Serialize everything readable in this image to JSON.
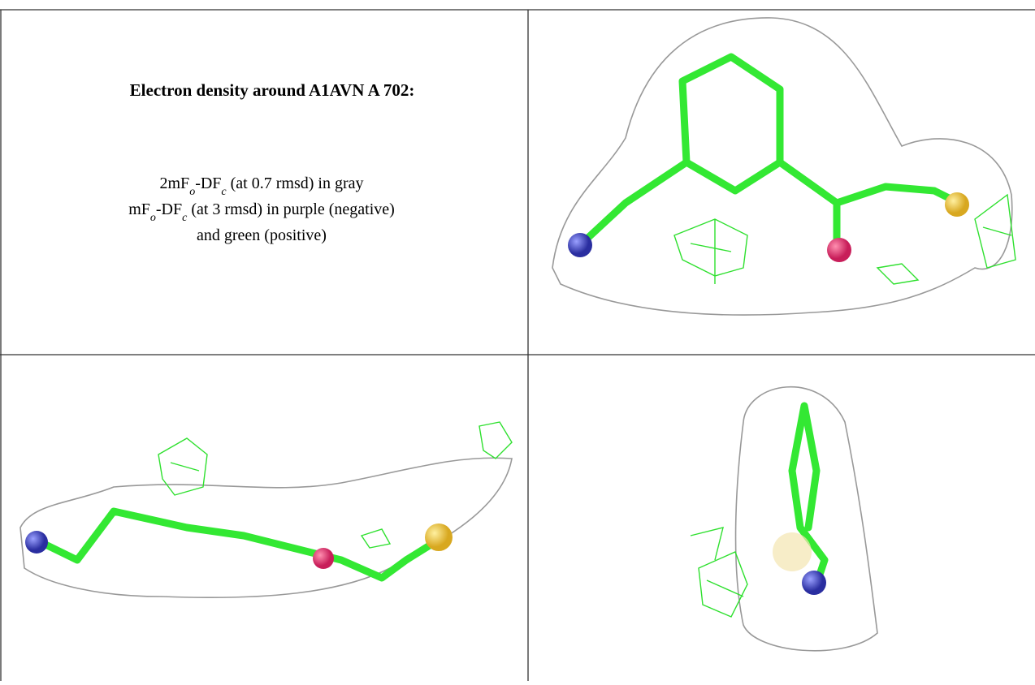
{
  "caption": {
    "title": "Electron density around A1AVN A 702:",
    "lines": [
      [
        "2mF",
        "o",
        "-DF",
        "c",
        " (at 0.7 rmsd) in gray"
      ],
      [
        "mF",
        "o",
        "-DF",
        "c",
        " (at 3 rmsd) in purple (negative)"
      ],
      [
        "and green (positive)"
      ]
    ]
  }
}
